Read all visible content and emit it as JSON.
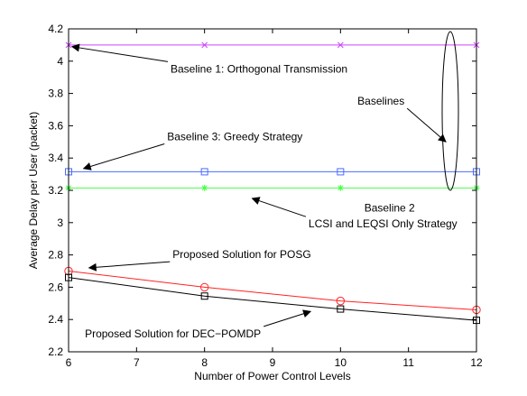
{
  "chart_data": {
    "type": "line",
    "title": "",
    "xlabel": "Number of Power Control Levels",
    "ylabel": "Average Delay per User (packet)",
    "xlim": [
      6,
      12
    ],
    "ylim": [
      2.2,
      4.2
    ],
    "x_ticks": [
      6,
      7,
      8,
      9,
      10,
      11,
      12
    ],
    "y_ticks": [
      2.2,
      2.4,
      2.6,
      2.8,
      3,
      3.2,
      3.4,
      3.6,
      3.8,
      4,
      4.2
    ],
    "x_tick_labels": [
      "6",
      "7",
      "8",
      "9",
      "10",
      "11",
      "12"
    ],
    "y_tick_labels": [
      "2.2",
      "2.4",
      "2.6",
      "2.8",
      "3",
      "3.2",
      "3.4",
      "3.6",
      "3.8",
      "4",
      "4.2"
    ],
    "grid": false,
    "series": [
      {
        "color": "#cc44ff",
        "marker": "x",
        "x": [
          6,
          8,
          10,
          12
        ],
        "y": [
          4.1,
          4.1,
          4.1,
          4.1
        ]
      },
      {
        "color": "#4b6cff",
        "marker": "square",
        "x": [
          6,
          8,
          10,
          12
        ],
        "y": [
          3.315,
          3.315,
          3.315,
          3.315
        ]
      },
      {
        "color": "#44ff44",
        "marker": "star",
        "x": [
          6,
          8,
          10,
          12
        ],
        "y": [
          3.215,
          3.215,
          3.215,
          3.215
        ]
      },
      {
        "color": "#ff2222",
        "marker": "circle",
        "x": [
          6,
          8,
          10,
          12
        ],
        "y": [
          2.7,
          2.6,
          2.515,
          2.46
        ]
      },
      {
        "color": "#000000",
        "marker": "square",
        "x": [
          6,
          8,
          10,
          12
        ],
        "y": [
          2.66,
          2.545,
          2.465,
          2.395
        ]
      }
    ],
    "annotations": [
      {
        "text": "Baseline 1: Orthogonal Transmission",
        "x": 7.5,
        "y": 3.93,
        "arrow_to": [
          6.05,
          4.09
        ]
      },
      {
        "text": "Baseline 3: Greedy Strategy",
        "x": 7.45,
        "y": 3.51,
        "arrow_to": [
          6.22,
          3.335
        ]
      },
      {
        "text": "Baselines",
        "x": 10.25,
        "y": 3.73,
        "arrow_to": [
          11.55,
          3.5
        ]
      },
      {
        "text": "Baseline 2",
        "x": 10.35,
        "y": 3.07
      },
      {
        "text": "LCSI and LEQSI Only Strategy",
        "x": 9.53,
        "y": 2.97,
        "arrow_to": [
          8.7,
          3.15
        ]
      },
      {
        "text": "Proposed Solution for POSG",
        "x": 7.53,
        "y": 2.78,
        "arrow_to": [
          6.3,
          2.72
        ]
      },
      {
        "text": "Proposed Solution for DEC−POMDP",
        "x": 6.24,
        "y": 2.29,
        "arrow_to": [
          9.56,
          2.45
        ]
      }
    ]
  }
}
